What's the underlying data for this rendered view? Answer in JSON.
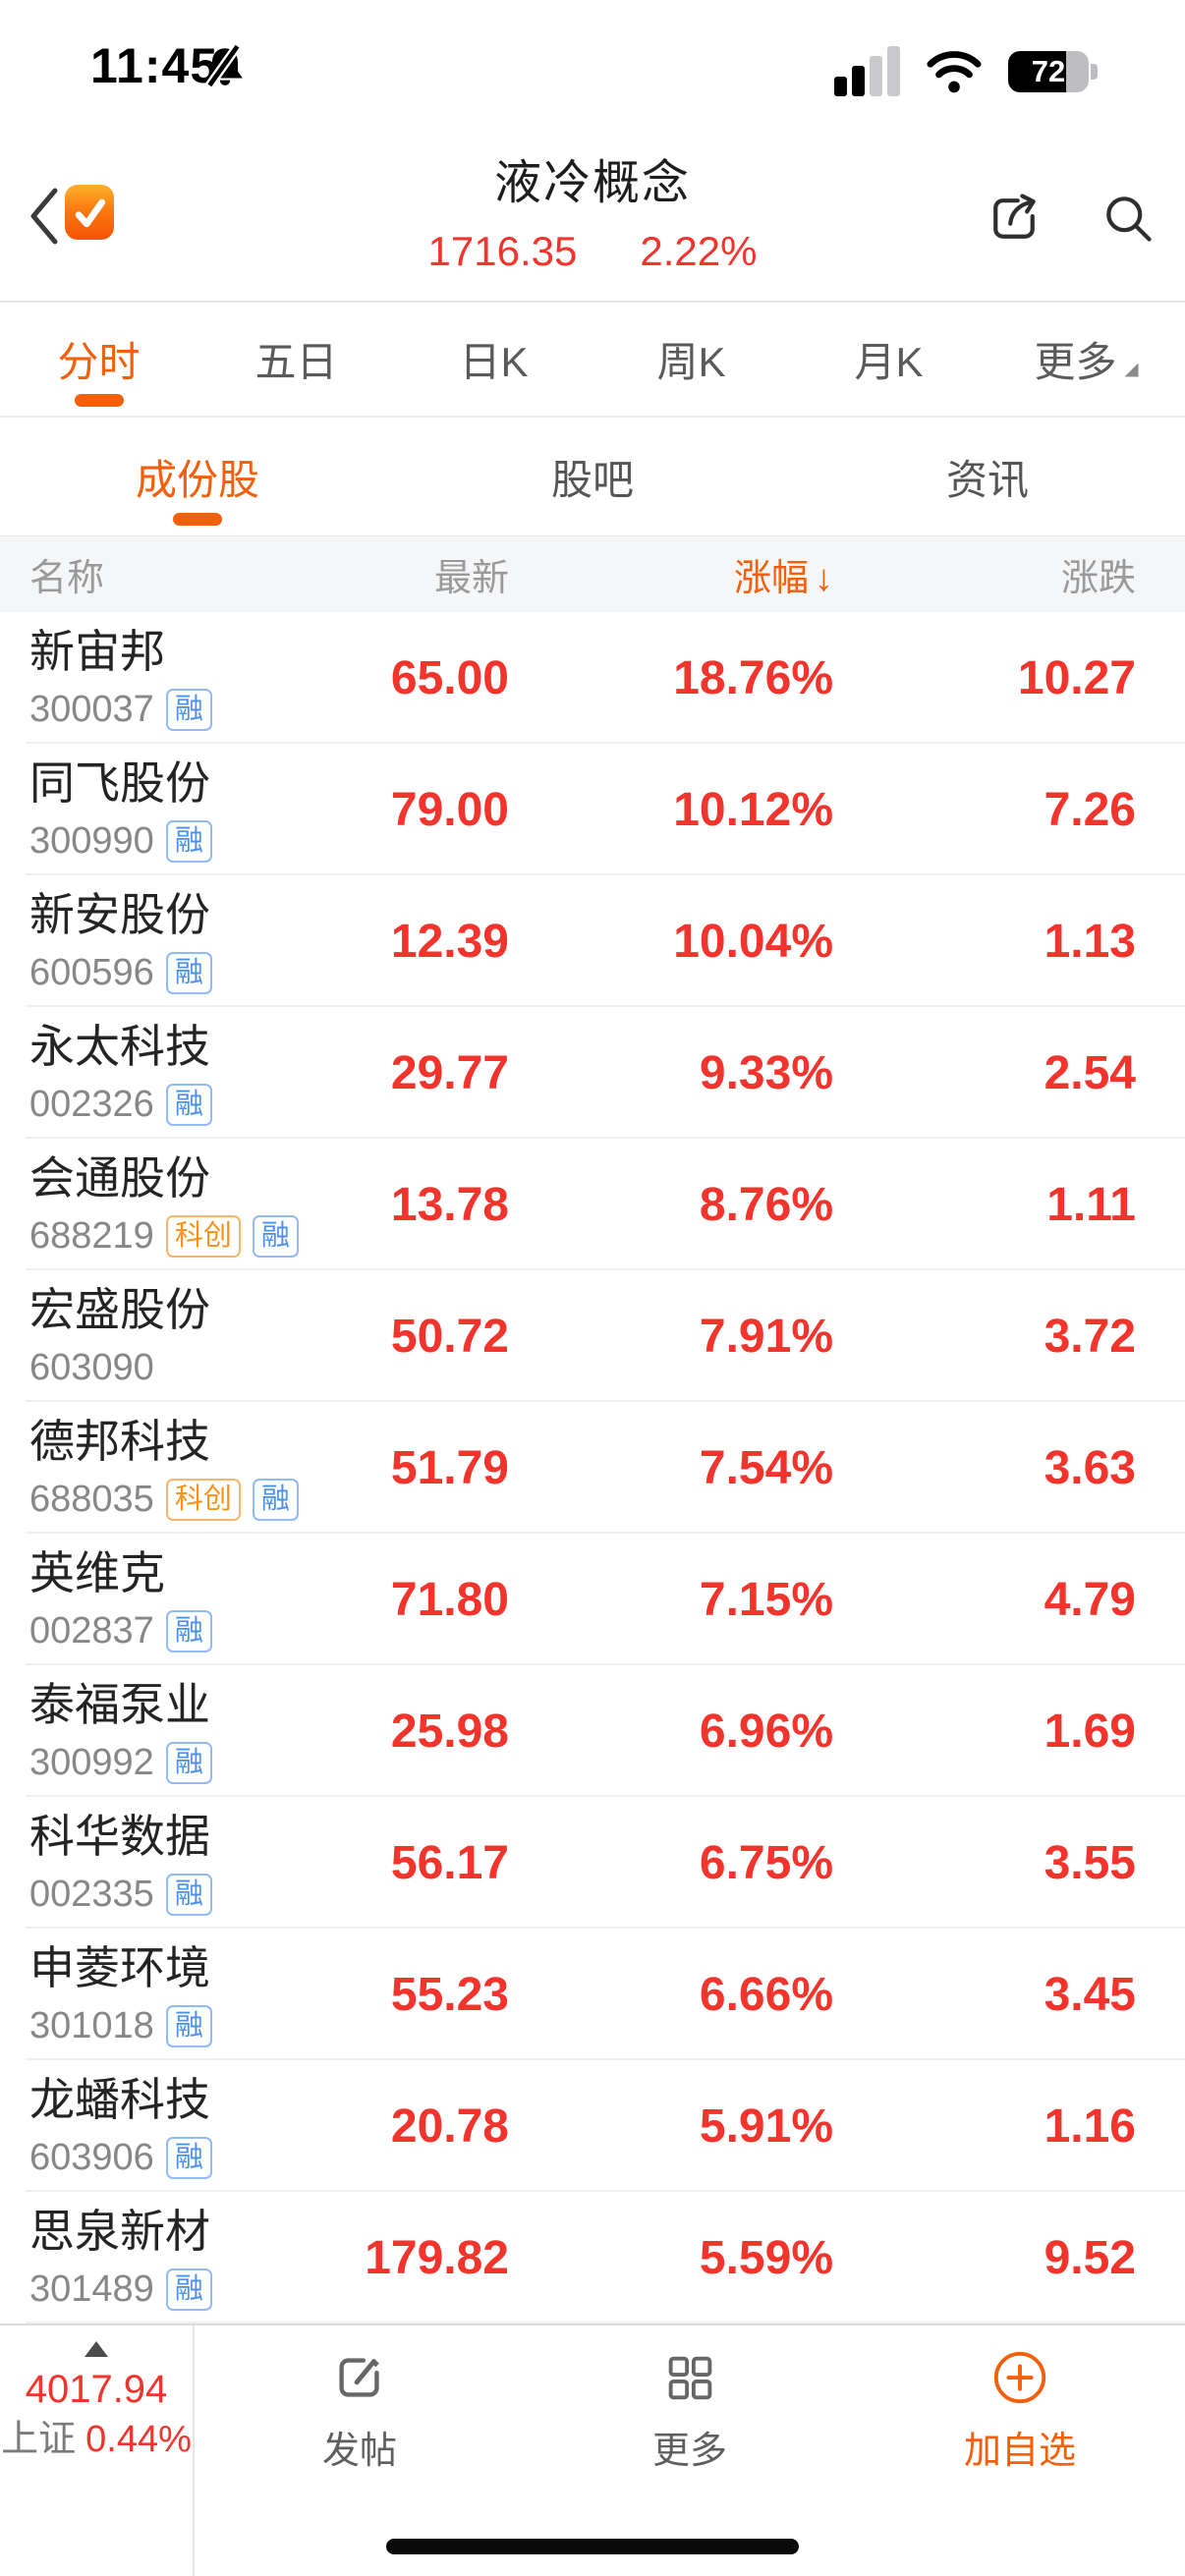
{
  "status_bar": {
    "time": "11:45",
    "battery": "72"
  },
  "header": {
    "title": "液冷概念",
    "index_value": "1716.35",
    "index_change": "2.22%"
  },
  "period_tabs": [
    {
      "label": "分时",
      "active": true
    },
    {
      "label": "五日",
      "active": false
    },
    {
      "label": "日K",
      "active": false
    },
    {
      "label": "周K",
      "active": false
    },
    {
      "label": "月K",
      "active": false
    },
    {
      "label": "更多",
      "active": false,
      "dropdown": true
    }
  ],
  "section_tabs": [
    {
      "label": "成份股",
      "active": true
    },
    {
      "label": "股吧",
      "active": false
    },
    {
      "label": "资讯",
      "active": false
    }
  ],
  "table": {
    "headers": {
      "name": "名称",
      "last": "最新",
      "pct": "涨幅",
      "sort_arrow": "↓",
      "chg": "涨跌"
    },
    "rows": [
      {
        "name": "新宙邦",
        "code": "300037",
        "badges": [
          "融"
        ],
        "last": "65.00",
        "pct": "18.76%",
        "chg": "10.27"
      },
      {
        "name": "同飞股份",
        "code": "300990",
        "badges": [
          "融"
        ],
        "last": "79.00",
        "pct": "10.12%",
        "chg": "7.26"
      },
      {
        "name": "新安股份",
        "code": "600596",
        "badges": [
          "融"
        ],
        "last": "12.39",
        "pct": "10.04%",
        "chg": "1.13"
      },
      {
        "name": "永太科技",
        "code": "002326",
        "badges": [
          "融"
        ],
        "last": "29.77",
        "pct": "9.33%",
        "chg": "2.54"
      },
      {
        "name": "会通股份",
        "code": "688219",
        "badges": [
          "科创",
          "融"
        ],
        "last": "13.78",
        "pct": "8.76%",
        "chg": "1.11"
      },
      {
        "name": "宏盛股份",
        "code": "603090",
        "badges": [],
        "last": "50.72",
        "pct": "7.91%",
        "chg": "3.72"
      },
      {
        "name": "德邦科技",
        "code": "688035",
        "badges": [
          "科创",
          "融"
        ],
        "last": "51.79",
        "pct": "7.54%",
        "chg": "3.63"
      },
      {
        "name": "英维克",
        "code": "002837",
        "badges": [
          "融"
        ],
        "last": "71.80",
        "pct": "7.15%",
        "chg": "4.79"
      },
      {
        "name": "泰福泵业",
        "code": "300992",
        "badges": [
          "融"
        ],
        "last": "25.98",
        "pct": "6.96%",
        "chg": "1.69"
      },
      {
        "name": "科华数据",
        "code": "002335",
        "badges": [
          "融"
        ],
        "last": "56.17",
        "pct": "6.75%",
        "chg": "3.55"
      },
      {
        "name": "申菱环境",
        "code": "301018",
        "badges": [
          "融"
        ],
        "last": "55.23",
        "pct": "6.66%",
        "chg": "3.45"
      },
      {
        "name": "龙蟠科技",
        "code": "603906",
        "badges": [
          "融"
        ],
        "last": "20.78",
        "pct": "5.91%",
        "chg": "1.16"
      },
      {
        "name": "思泉新材",
        "code": "301489",
        "badges": [
          "融"
        ],
        "last": "179.82",
        "pct": "5.59%",
        "chg": "9.52"
      }
    ]
  },
  "bottom_bar": {
    "index": {
      "value": "4017.94",
      "name": "上证",
      "pct": "0.44%"
    },
    "post": "发帖",
    "more": "更多",
    "add_watch": "加自选"
  },
  "colors": {
    "accent": "#f2600c",
    "red": "#f2342c",
    "badge_blue": "#4a90ee",
    "badge_orange": "#f8921c"
  }
}
